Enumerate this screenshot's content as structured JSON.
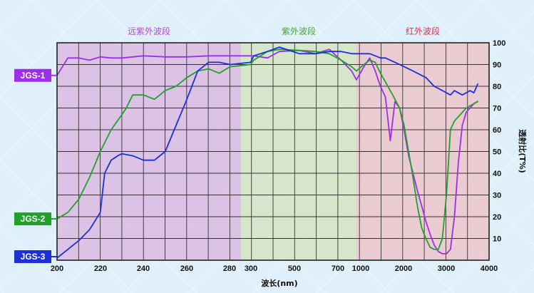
{
  "chart_data": {
    "type": "line",
    "xlabel": "波长(nm)",
    "ylabel": "透射比(T%)",
    "ylim": [
      0,
      100
    ],
    "y_ticks": [
      "10",
      "20",
      "30",
      "40",
      "50",
      "60",
      "70",
      "80",
      "90",
      "100"
    ],
    "regions": [
      {
        "label": "远紫外波段",
        "color": "#dbb6e0"
      },
      {
        "label": "紫外波段",
        "color": "#d2e4be"
      },
      {
        "label": "红外波段",
        "color": "#eec2c8"
      }
    ],
    "x_segments": [
      {
        "name": "远紫外",
        "ticks": [
          "200",
          "220",
          "240",
          "260",
          "280"
        ]
      },
      {
        "name": "紫外",
        "ticks": [
          "300",
          "500",
          "700"
        ]
      },
      {
        "name": "红外",
        "ticks": [
          "1000",
          "2000",
          "3000",
          "4000"
        ]
      }
    ],
    "series": [
      {
        "name": "JGS-1",
        "color": "#9b30e8",
        "x": [
          "200",
          "205",
          "210",
          "215",
          "220",
          "225",
          "230",
          "240",
          "250",
          "260",
          "270",
          "280",
          "290",
          "300",
          "350",
          "400",
          "500",
          "600",
          "700",
          "800",
          "900",
          "1000",
          "1100",
          "1200",
          "1300",
          "1400",
          "1500",
          "1600",
          "1700",
          "1800",
          "1900",
          "2000",
          "2100",
          "2200",
          "2300",
          "2400",
          "2500",
          "2600",
          "2700",
          "2800",
          "2900",
          "3000",
          "3100",
          "3200",
          "3300",
          "3400",
          "3500",
          "3600",
          "3700"
        ],
        "values": [
          85,
          93,
          93,
          92,
          93.5,
          93,
          93,
          94,
          93.5,
          93.5,
          94,
          94,
          94,
          94,
          93,
          96,
          96.5,
          95,
          97,
          92,
          87,
          83,
          89,
          93,
          87,
          80,
          75,
          55,
          73,
          70,
          60,
          48,
          40,
          32,
          25,
          18,
          12,
          7,
          4,
          3,
          3,
          5,
          20,
          45,
          62,
          68,
          70,
          72,
          73
        ]
      },
      {
        "name": "JGS-2",
        "color": "#22a12a",
        "x": [
          "200",
          "205",
          "210",
          "215",
          "220",
          "225",
          "230",
          "232",
          "235",
          "240",
          "245",
          "250",
          "255",
          "260",
          "265",
          "270",
          "275",
          "280",
          "290",
          "300",
          "350",
          "400",
          "500",
          "600",
          "700",
          "800",
          "900",
          "1000",
          "1100",
          "1200",
          "1300",
          "1400",
          "1500",
          "1600",
          "1700",
          "1800",
          "1900",
          "2000",
          "2100",
          "2200",
          "2300",
          "2400",
          "2500",
          "2600",
          "2700",
          "2800",
          "2900",
          "3000",
          "3100",
          "3200",
          "3300",
          "3400",
          "3500",
          "3600",
          "3700"
        ],
        "values": [
          19,
          22,
          28,
          38,
          50,
          60,
          67,
          70,
          76,
          76,
          74,
          78,
          80,
          84,
          87,
          88,
          86,
          89,
          90,
          92,
          96,
          97,
          96.5,
          96,
          95,
          92,
          89,
          87,
          90,
          92,
          91,
          86,
          82,
          78,
          74,
          70,
          62,
          50,
          38,
          25,
          15,
          10,
          6,
          5,
          5,
          10,
          30,
          60,
          64,
          66,
          68,
          70,
          71,
          72,
          73
        ]
      },
      {
        "name": "JGS-3",
        "color": "#1e2fd8",
        "x": [
          "200",
          "205",
          "210",
          "215",
          "220",
          "222",
          "225",
          "228",
          "230",
          "235",
          "240",
          "245",
          "250",
          "255",
          "260",
          "265",
          "270",
          "275",
          "280",
          "290",
          "300",
          "350",
          "400",
          "500",
          "600",
          "700",
          "800",
          "900",
          "1000",
          "1100",
          "1200",
          "1300",
          "1400",
          "1500",
          "1600",
          "1700",
          "1800",
          "1900",
          "2000",
          "2100",
          "2200",
          "2300",
          "2400",
          "2500",
          "2600",
          "2700",
          "2800",
          "2900",
          "3000",
          "3100",
          "3200",
          "3300",
          "3400",
          "3500",
          "3600",
          "3700"
        ],
        "values": [
          1,
          5,
          9,
          14,
          22,
          40,
          46,
          48,
          49,
          48,
          46,
          46,
          50,
          62,
          74,
          87,
          91,
          91,
          90,
          91,
          94,
          96,
          98,
          95,
          95,
          96,
          96,
          95,
          95,
          95,
          95,
          94,
          93,
          93,
          92,
          91,
          90,
          89,
          88,
          87,
          86,
          85,
          84,
          82,
          80,
          79,
          78,
          77,
          76,
          78,
          77,
          76,
          77,
          78,
          77,
          81
        ]
      }
    ]
  }
}
